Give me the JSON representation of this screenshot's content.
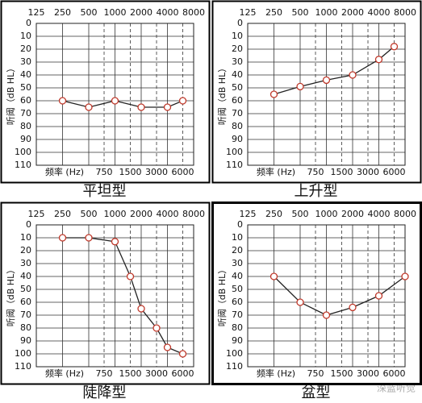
{
  "chart_data": [
    {
      "type": "line",
      "caption": "平坦型",
      "xlabel": "频率 (Hz)",
      "ylabel": "听阈（dB HL）",
      "xscale": "log",
      "xlim": [
        125,
        8000
      ],
      "xticks": [
        125,
        250,
        500,
        1000,
        2000,
        4000,
        8000
      ],
      "xticks_dashed": [
        750,
        1500,
        3000,
        6000
      ],
      "ylim": [
        0,
        110
      ],
      "y_inverted": true,
      "yticks": [
        0,
        10,
        20,
        30,
        40,
        50,
        60,
        70,
        80,
        90,
        100,
        110
      ],
      "grid": true,
      "color": "#c0392b",
      "line_color": "#222222",
      "x": [
        250,
        500,
        1000,
        2000,
        4000,
        6000
      ],
      "values": [
        60,
        65,
        60,
        65,
        65,
        60
      ]
    },
    {
      "type": "line",
      "caption": "上升型",
      "xlabel": "频率 (Hz)",
      "ylabel": "听阈（dB HL）",
      "xscale": "log",
      "xlim": [
        125,
        8000
      ],
      "xticks": [
        125,
        250,
        500,
        1000,
        2000,
        4000,
        8000
      ],
      "xticks_dashed": [
        750,
        1500,
        3000,
        6000
      ],
      "ylim": [
        0,
        110
      ],
      "y_inverted": true,
      "yticks": [
        0,
        10,
        20,
        30,
        40,
        50,
        60,
        70,
        80,
        90,
        100,
        110
      ],
      "grid": true,
      "color": "#c0392b",
      "line_color": "#222222",
      "x": [
        250,
        500,
        1000,
        2000,
        4000,
        6000
      ],
      "values": [
        55,
        49,
        44,
        40,
        28,
        18
      ]
    },
    {
      "type": "line",
      "caption": "陡降型",
      "xlabel": "频率 (Hz)",
      "ylabel": "听阈（dB HL）",
      "xscale": "log",
      "xlim": [
        125,
        8000
      ],
      "xticks": [
        125,
        250,
        500,
        1000,
        2000,
        4000,
        8000
      ],
      "xticks_dashed": [
        750,
        1500,
        3000,
        6000
      ],
      "ylim": [
        0,
        110
      ],
      "y_inverted": true,
      "yticks": [
        0,
        10,
        20,
        30,
        40,
        50,
        60,
        70,
        80,
        90,
        100,
        110
      ],
      "grid": true,
      "color": "#c0392b",
      "line_color": "#222222",
      "x": [
        250,
        500,
        1000,
        1500,
        2000,
        3000,
        4000,
        6000
      ],
      "values": [
        10,
        10,
        13,
        40,
        65,
        80,
        95,
        100
      ]
    },
    {
      "type": "line",
      "caption": "盆型",
      "xlabel": "频率 (Hz)",
      "ylabel": "听阈（dB HL）",
      "xscale": "log",
      "xlim": [
        125,
        8000
      ],
      "xticks": [
        125,
        250,
        500,
        1000,
        2000,
        4000,
        8000
      ],
      "xticks_dashed": [
        750,
        1500,
        3000,
        6000
      ],
      "ylim": [
        0,
        110
      ],
      "y_inverted": true,
      "yticks": [
        0,
        10,
        20,
        30,
        40,
        50,
        60,
        70,
        80,
        90,
        100,
        110
      ],
      "grid": true,
      "color": "#c0392b",
      "line_color": "#222222",
      "x": [
        250,
        500,
        1000,
        2000,
        4000,
        8000
      ],
      "values": [
        40,
        60,
        70,
        64,
        55,
        40
      ]
    }
  ],
  "watermark": "深蓝听觉"
}
